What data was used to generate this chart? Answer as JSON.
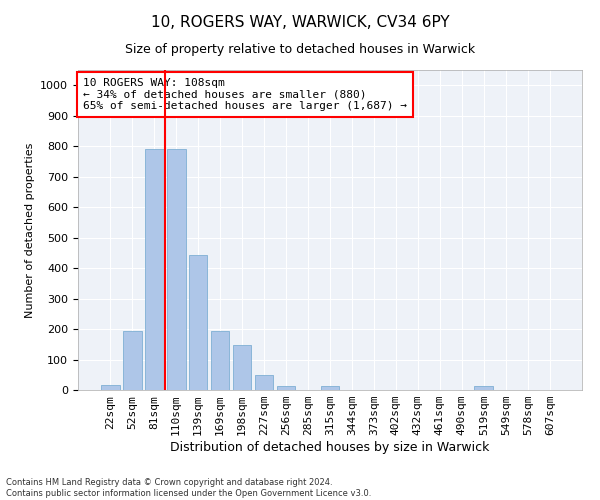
{
  "title1": "10, ROGERS WAY, WARWICK, CV34 6PY",
  "title2": "Size of property relative to detached houses in Warwick",
  "xlabel": "Distribution of detached houses by size in Warwick",
  "ylabel": "Number of detached properties",
  "bar_labels": [
    "22sqm",
    "52sqm",
    "81sqm",
    "110sqm",
    "139sqm",
    "169sqm",
    "198sqm",
    "227sqm",
    "256sqm",
    "285sqm",
    "315sqm",
    "344sqm",
    "373sqm",
    "402sqm",
    "432sqm",
    "461sqm",
    "490sqm",
    "519sqm",
    "549sqm",
    "578sqm",
    "607sqm"
  ],
  "bar_values": [
    15,
    192,
    790,
    790,
    443,
    192,
    148,
    50,
    13,
    0,
    13,
    0,
    0,
    0,
    0,
    0,
    0,
    13,
    0,
    0,
    0
  ],
  "bar_color": "#aec6e8",
  "bar_edge_color": "#7fafd4",
  "vline_color": "red",
  "vline_pos": 2.5,
  "annotation_text": "10 ROGERS WAY: 108sqm\n← 34% of detached houses are smaller (880)\n65% of semi-detached houses are larger (1,687) →",
  "annotation_box_color": "white",
  "annotation_box_edge_color": "red",
  "ylim": [
    0,
    1050
  ],
  "yticks": [
    0,
    100,
    200,
    300,
    400,
    500,
    600,
    700,
    800,
    900,
    1000
  ],
  "footer": "Contains HM Land Registry data © Crown copyright and database right 2024.\nContains public sector information licensed under the Open Government Licence v3.0.",
  "bg_color": "#eef2f8",
  "grid_color": "white",
  "title1_fontsize": 11,
  "title2_fontsize": 9,
  "xlabel_fontsize": 9,
  "ylabel_fontsize": 8,
  "tick_fontsize": 8,
  "annot_fontsize": 8,
  "footer_fontsize": 6
}
